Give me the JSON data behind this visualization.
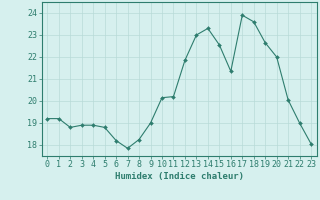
{
  "x": [
    0,
    1,
    2,
    3,
    4,
    5,
    6,
    7,
    8,
    9,
    10,
    11,
    12,
    13,
    14,
    15,
    16,
    17,
    18,
    19,
    20,
    21,
    22,
    23
  ],
  "y": [
    19.2,
    19.2,
    18.8,
    18.9,
    18.9,
    18.8,
    18.2,
    17.85,
    18.25,
    19.0,
    20.15,
    20.2,
    21.85,
    23.0,
    23.3,
    22.55,
    21.35,
    23.9,
    23.6,
    22.65,
    22.0,
    20.05,
    19.0,
    18.05
  ],
  "line_color": "#2e7d6e",
  "marker": "D",
  "marker_size": 2,
  "bg_color": "#d6f0ee",
  "grid_color": "#b8dbd8",
  "axis_color": "#2e7d6e",
  "xlabel": "Humidex (Indice chaleur)",
  "ylim": [
    17.5,
    24.5
  ],
  "yticks": [
    18,
    19,
    20,
    21,
    22,
    23,
    24
  ],
  "xticks": [
    0,
    1,
    2,
    3,
    4,
    5,
    6,
    7,
    8,
    9,
    10,
    11,
    12,
    13,
    14,
    15,
    16,
    17,
    18,
    19,
    20,
    21,
    22,
    23
  ],
  "xlabel_fontsize": 6.5,
  "tick_fontsize": 6.0
}
